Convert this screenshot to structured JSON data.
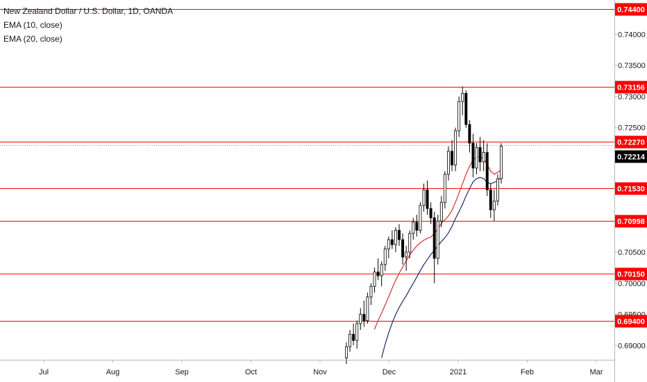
{
  "legend": {
    "symbol_line": "New Zealand Dollar / U.S. Dollar, 1D, OANDA",
    "ema_fast_label": "EMA (10, close)",
    "ema_slow_label": "EMA (20, close)"
  },
  "colors": {
    "background": "#ffffff",
    "level_line": "#ff0000",
    "level_tag_bg": "#ff0000",
    "last_price_tag_bg": "#000000",
    "candle_up_fill": "#ffffff",
    "candle_down_fill": "#000000",
    "candle_outline": "#000000",
    "ema_fast": "#d32f2f",
    "ema_slow": "#1a2a6c",
    "axis_text": "#131722"
  },
  "chart_data": {
    "type": "candlestick",
    "price_range": [
      0.6877,
      0.7455
    ],
    "x_axis_labels": [
      "Jul",
      "Aug",
      "Sep",
      "Oct",
      "Nov",
      "Dec",
      "2021",
      "Feb",
      "Mar"
    ],
    "y_axis_ticks": [
      "0.74000",
      "0.73500",
      "0.73000",
      "0.72500",
      "0.70500",
      "0.70000",
      "0.69500",
      "0.69000"
    ],
    "horizontal_levels": [
      "0.74400",
      "0.73156",
      "0.72270",
      "0.71530",
      "0.70998",
      "0.70150",
      "0.69400"
    ],
    "last_price": "0.72214",
    "ohlc": [
      [
        0.688,
        0.6905,
        0.687,
        0.6898
      ],
      [
        0.6898,
        0.6925,
        0.689,
        0.6918
      ],
      [
        0.6918,
        0.6935,
        0.69,
        0.6908
      ],
      [
        0.6908,
        0.694,
        0.6895,
        0.6935
      ],
      [
        0.6935,
        0.696,
        0.6925,
        0.695
      ],
      [
        0.695,
        0.6972,
        0.693,
        0.694
      ],
      [
        0.694,
        0.6985,
        0.6935,
        0.6978
      ],
      [
        0.6978,
        0.7,
        0.6965,
        0.6995
      ],
      [
        0.6995,
        0.7025,
        0.6985,
        0.7018
      ],
      [
        0.7018,
        0.704,
        0.7005,
        0.7012
      ],
      [
        0.7012,
        0.7035,
        0.6995,
        0.703
      ],
      [
        0.703,
        0.706,
        0.702,
        0.7055
      ],
      [
        0.7055,
        0.7075,
        0.704,
        0.707
      ],
      [
        0.707,
        0.7085,
        0.7055,
        0.7062
      ],
      [
        0.7062,
        0.709,
        0.705,
        0.7085
      ],
      [
        0.7085,
        0.7095,
        0.706,
        0.707
      ],
      [
        0.707,
        0.708,
        0.703,
        0.7042
      ],
      [
        0.7042,
        0.706,
        0.702,
        0.705
      ],
      [
        0.705,
        0.7085,
        0.704,
        0.708
      ],
      [
        0.708,
        0.7105,
        0.707,
        0.7098
      ],
      [
        0.7098,
        0.711,
        0.7075,
        0.7085
      ],
      [
        0.7085,
        0.713,
        0.708,
        0.7125
      ],
      [
        0.7125,
        0.716,
        0.7115,
        0.715
      ],
      [
        0.715,
        0.7165,
        0.711,
        0.712
      ],
      [
        0.712,
        0.713,
        0.7095,
        0.7105
      ],
      [
        0.7105,
        0.7115,
        0.7,
        0.704
      ],
      [
        0.704,
        0.711,
        0.703,
        0.71
      ],
      [
        0.71,
        0.714,
        0.709,
        0.713
      ],
      [
        0.713,
        0.718,
        0.712,
        0.7175
      ],
      [
        0.7175,
        0.722,
        0.7165,
        0.7212
      ],
      [
        0.7212,
        0.723,
        0.718,
        0.719
      ],
      [
        0.719,
        0.725,
        0.718,
        0.7245
      ],
      [
        0.7245,
        0.73,
        0.7235,
        0.7292
      ],
      [
        0.7292,
        0.7316,
        0.727,
        0.7305
      ],
      [
        0.7305,
        0.731,
        0.725,
        0.7255
      ],
      [
        0.7255,
        0.7262,
        0.721,
        0.7225
      ],
      [
        0.7225,
        0.724,
        0.717,
        0.7185
      ],
      [
        0.7185,
        0.7225,
        0.7175,
        0.7218
      ],
      [
        0.7218,
        0.7235,
        0.718,
        0.7195
      ],
      [
        0.7195,
        0.723,
        0.718,
        0.721
      ],
      [
        0.721,
        0.7225,
        0.714,
        0.715
      ],
      [
        0.715,
        0.716,
        0.7105,
        0.7118
      ],
      [
        0.7118,
        0.715,
        0.71,
        0.7132
      ],
      [
        0.7132,
        0.7175,
        0.7125,
        0.7168
      ],
      [
        0.7168,
        0.7225,
        0.716,
        0.722
      ]
    ],
    "ema_10": [
      0.6926,
      0.694,
      0.6952,
      0.6965,
      0.6978,
      0.6992,
      0.7005,
      0.7016,
      0.7026,
      0.7036,
      0.7045,
      0.7053,
      0.706,
      0.7065,
      0.7069,
      0.7072,
      0.7074,
      0.708,
      0.7088,
      0.7096,
      0.7102,
      0.7108,
      0.7117,
      0.713,
      0.7145,
      0.716,
      0.7175,
      0.7188,
      0.7198,
      0.7203,
      0.7203,
      0.72,
      0.7191,
      0.718,
      0.7175,
      0.7178,
      0.7182
    ],
    "ema_20": [
      0.688,
      0.6902,
      0.692,
      0.6936,
      0.695,
      0.6961,
      0.6971,
      0.698,
      0.699,
      0.7,
      0.701,
      0.702,
      0.703,
      0.7038,
      0.7046,
      0.7053,
      0.706,
      0.7067,
      0.7073,
      0.7081,
      0.7091,
      0.7104,
      0.7115,
      0.7127,
      0.714,
      0.7152,
      0.7163,
      0.7168,
      0.717,
      0.7168,
      0.7162,
      0.716,
      0.7162,
      0.7165,
      0.717
    ]
  }
}
